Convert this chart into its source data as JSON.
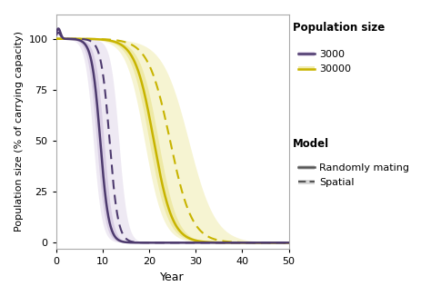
{
  "xlabel": "Year",
  "ylabel": "Population size (% of carrying capacity)",
  "xlim": [
    0,
    50
  ],
  "ylim": [
    -3,
    112
  ],
  "xticks": [
    0,
    10,
    20,
    30,
    40,
    50
  ],
  "yticks": [
    0,
    25,
    50,
    75,
    100
  ],
  "background_color": "#ffffff",
  "purple_color": "#4d3a6e",
  "purple_ribbon_color": "#c9b8d8",
  "yellow_color": "#c8b400",
  "yellow_ribbon_color": "#e8e080",
  "legend_pop_title": "Population size",
  "legend_model_title": "Model",
  "legend_3000": "3000",
  "legend_30000": "30000",
  "legend_random": "Randomly mating",
  "legend_spatial": "Spatial",
  "mid_3000_rand": 9.5,
  "mid_3000_spat": 11.5,
  "steep_3000": 1.1,
  "mid_30000_rand": 21.0,
  "mid_30000_spat": 24.5,
  "steep_30000": 0.5
}
